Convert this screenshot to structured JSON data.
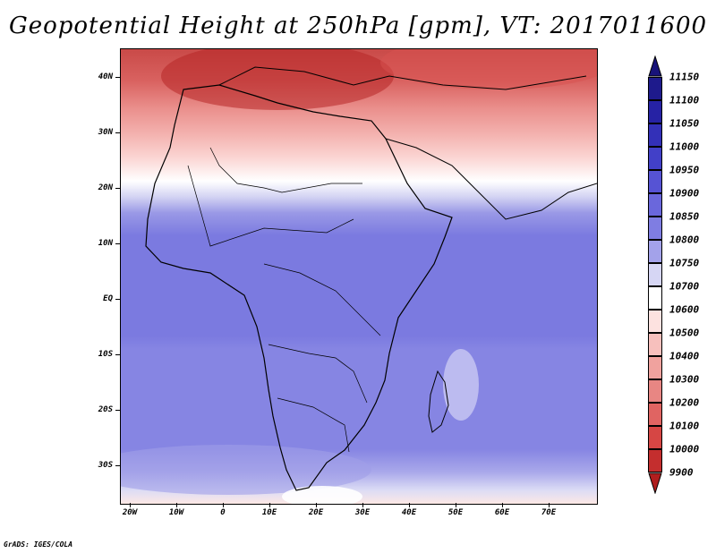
{
  "title": "Geopotential Height at 250hPa [gpm], VT: 2017011600",
  "credit": "GrADS: IGES/COLA",
  "map": {
    "lon_range": [
      -25,
      80
    ],
    "lat_range": [
      -37,
      45
    ],
    "lat_ticks": [
      {
        "value": 40,
        "label": "40N"
      },
      {
        "value": 30,
        "label": "30N"
      },
      {
        "value": 20,
        "label": "20N"
      },
      {
        "value": 10,
        "label": "10N"
      },
      {
        "value": 0,
        "label": "EQ"
      },
      {
        "value": -10,
        "label": "10S"
      },
      {
        "value": -20,
        "label": "20S"
      },
      {
        "value": -30,
        "label": "30S"
      }
    ],
    "lon_ticks": [
      {
        "value": -20,
        "label": "20W"
      },
      {
        "value": -10,
        "label": "10W"
      },
      {
        "value": 0,
        "label": "0"
      },
      {
        "value": 10,
        "label": "10E"
      },
      {
        "value": 20,
        "label": "20E"
      },
      {
        "value": 30,
        "label": "30E"
      },
      {
        "value": 40,
        "label": "40E"
      },
      {
        "value": 50,
        "label": "50E"
      },
      {
        "value": 60,
        "label": "60E"
      },
      {
        "value": 70,
        "label": "70E"
      }
    ]
  },
  "colorbar": {
    "levels": [
      {
        "label": "11150",
        "color": "#1e1a8c"
      },
      {
        "label": "11100",
        "color": "#2622a4"
      },
      {
        "label": "11050",
        "color": "#3330b8"
      },
      {
        "label": "11000",
        "color": "#4240c8"
      },
      {
        "label": "10950",
        "color": "#5653d4"
      },
      {
        "label": "10900",
        "color": "#6a67dc"
      },
      {
        "label": "10850",
        "color": "#7f7de2"
      },
      {
        "label": "10800",
        "color": "#a3a2ea"
      },
      {
        "label": "10750",
        "color": "#d6d6f4"
      },
      {
        "label": "10700",
        "color": "#ffffff"
      },
      {
        "label": "10600",
        "color": "#fde2e0"
      },
      {
        "label": "10500",
        "color": "#f7c0bd"
      },
      {
        "label": "10400",
        "color": "#f0a29e"
      },
      {
        "label": "10300",
        "color": "#e88683"
      },
      {
        "label": "10200",
        "color": "#e06462"
      },
      {
        "label": "10100",
        "color": "#d64644"
      },
      {
        "label": "10000",
        "color": "#c42e2e"
      },
      {
        "label": "9900",
        "color": "#a81c1c"
      }
    ],
    "top_arrow_color": "#18137a",
    "bottom_arrow_color": "#b01e1e"
  }
}
